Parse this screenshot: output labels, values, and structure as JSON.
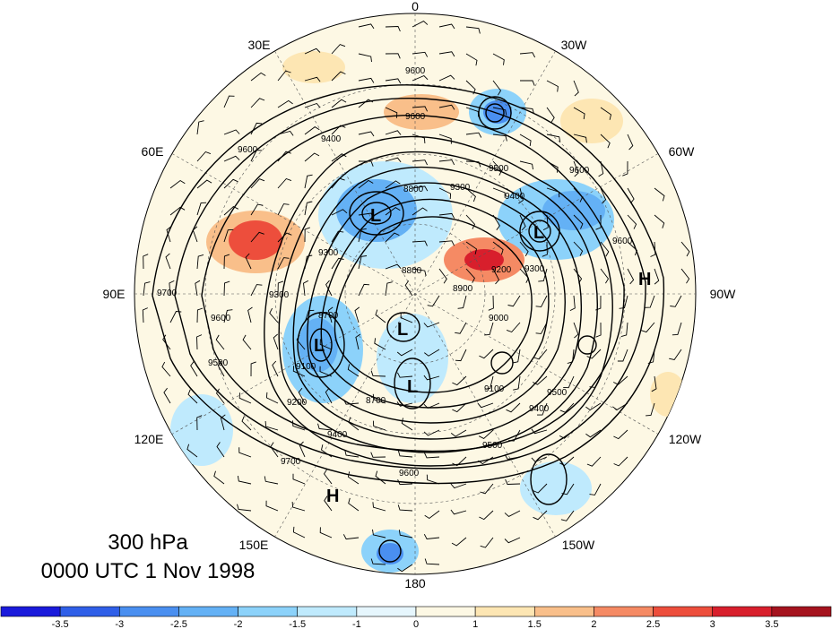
{
  "title": {
    "level": "300 hPa",
    "time": "0000 UTC 1 Nov 1998"
  },
  "lon_labels": [
    "0",
    "30W",
    "60W",
    "90W",
    "120W",
    "150W",
    "180",
    "150E",
    "120E",
    "90E",
    "60E",
    "30E"
  ],
  "contour_labels": [
    "9600",
    "9600",
    "9600",
    "9500",
    "9400",
    "9300",
    "9200",
    "9100",
    "9000",
    "8900",
    "8800",
    "8800",
    "8700",
    "8700",
    "9100",
    "9200",
    "9300",
    "9400",
    "9500",
    "9600",
    "9700",
    "9700",
    "9600",
    "9500",
    "9400",
    "9300",
    "9600",
    "9500",
    "9400",
    "9300",
    "9600"
  ],
  "centers": [
    "L",
    "L",
    "L",
    "L",
    "L",
    "H",
    "H"
  ],
  "colorbar": {
    "ticks": [
      "-3.5",
      "-3",
      "-2.5",
      "-2",
      "-1.5",
      "-1",
      "0",
      "1",
      "1.5",
      "2",
      "2.5",
      "3",
      "3.5"
    ],
    "colors": [
      "#1a1adb",
      "#2f5fe8",
      "#4a8ff0",
      "#64b1f5",
      "#8cd2fa",
      "#bfeafd",
      "#e6f6fd",
      "#fdf8e4",
      "#fde6b3",
      "#f9bf8a",
      "#f58a64",
      "#ed4e3c",
      "#d81f2c",
      "#a5131e"
    ]
  }
}
